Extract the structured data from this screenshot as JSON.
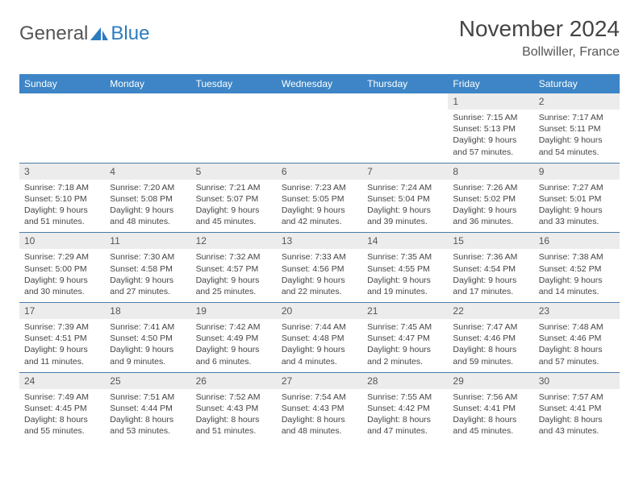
{
  "brand": {
    "name1": "General",
    "name2": "Blue"
  },
  "title": "November 2024",
  "location": "Bollwiller, France",
  "colors": {
    "header_bg": "#3d85c6",
    "header_text": "#ffffff",
    "daynum_bg": "#ececec",
    "row_border": "#4a7aa8",
    "body_text": "#444444",
    "title_text": "#444444",
    "brand_grey": "#555555",
    "brand_blue": "#2b7bbf",
    "page_bg": "#ffffff"
  },
  "typography": {
    "title_fontsize": 28,
    "location_fontsize": 16,
    "dayhead_fontsize": 12,
    "cell_fontsize": 10.5
  },
  "layout": {
    "columns": 7,
    "rows": 5
  },
  "day_names": [
    "Sunday",
    "Monday",
    "Tuesday",
    "Wednesday",
    "Thursday",
    "Friday",
    "Saturday"
  ],
  "weeks": [
    [
      null,
      null,
      null,
      null,
      null,
      {
        "n": "1",
        "sunrise": "7:15 AM",
        "sunset": "5:13 PM",
        "daylight": "9 hours and 57 minutes."
      },
      {
        "n": "2",
        "sunrise": "7:17 AM",
        "sunset": "5:11 PM",
        "daylight": "9 hours and 54 minutes."
      }
    ],
    [
      {
        "n": "3",
        "sunrise": "7:18 AM",
        "sunset": "5:10 PM",
        "daylight": "9 hours and 51 minutes."
      },
      {
        "n": "4",
        "sunrise": "7:20 AM",
        "sunset": "5:08 PM",
        "daylight": "9 hours and 48 minutes."
      },
      {
        "n": "5",
        "sunrise": "7:21 AM",
        "sunset": "5:07 PM",
        "daylight": "9 hours and 45 minutes."
      },
      {
        "n": "6",
        "sunrise": "7:23 AM",
        "sunset": "5:05 PM",
        "daylight": "9 hours and 42 minutes."
      },
      {
        "n": "7",
        "sunrise": "7:24 AM",
        "sunset": "5:04 PM",
        "daylight": "9 hours and 39 minutes."
      },
      {
        "n": "8",
        "sunrise": "7:26 AM",
        "sunset": "5:02 PM",
        "daylight": "9 hours and 36 minutes."
      },
      {
        "n": "9",
        "sunrise": "7:27 AM",
        "sunset": "5:01 PM",
        "daylight": "9 hours and 33 minutes."
      }
    ],
    [
      {
        "n": "10",
        "sunrise": "7:29 AM",
        "sunset": "5:00 PM",
        "daylight": "9 hours and 30 minutes."
      },
      {
        "n": "11",
        "sunrise": "7:30 AM",
        "sunset": "4:58 PM",
        "daylight": "9 hours and 27 minutes."
      },
      {
        "n": "12",
        "sunrise": "7:32 AM",
        "sunset": "4:57 PM",
        "daylight": "9 hours and 25 minutes."
      },
      {
        "n": "13",
        "sunrise": "7:33 AM",
        "sunset": "4:56 PM",
        "daylight": "9 hours and 22 minutes."
      },
      {
        "n": "14",
        "sunrise": "7:35 AM",
        "sunset": "4:55 PM",
        "daylight": "9 hours and 19 minutes."
      },
      {
        "n": "15",
        "sunrise": "7:36 AM",
        "sunset": "4:54 PM",
        "daylight": "9 hours and 17 minutes."
      },
      {
        "n": "16",
        "sunrise": "7:38 AM",
        "sunset": "4:52 PM",
        "daylight": "9 hours and 14 minutes."
      }
    ],
    [
      {
        "n": "17",
        "sunrise": "7:39 AM",
        "sunset": "4:51 PM",
        "daylight": "9 hours and 11 minutes."
      },
      {
        "n": "18",
        "sunrise": "7:41 AM",
        "sunset": "4:50 PM",
        "daylight": "9 hours and 9 minutes."
      },
      {
        "n": "19",
        "sunrise": "7:42 AM",
        "sunset": "4:49 PM",
        "daylight": "9 hours and 6 minutes."
      },
      {
        "n": "20",
        "sunrise": "7:44 AM",
        "sunset": "4:48 PM",
        "daylight": "9 hours and 4 minutes."
      },
      {
        "n": "21",
        "sunrise": "7:45 AM",
        "sunset": "4:47 PM",
        "daylight": "9 hours and 2 minutes."
      },
      {
        "n": "22",
        "sunrise": "7:47 AM",
        "sunset": "4:46 PM",
        "daylight": "8 hours and 59 minutes."
      },
      {
        "n": "23",
        "sunrise": "7:48 AM",
        "sunset": "4:46 PM",
        "daylight": "8 hours and 57 minutes."
      }
    ],
    [
      {
        "n": "24",
        "sunrise": "7:49 AM",
        "sunset": "4:45 PM",
        "daylight": "8 hours and 55 minutes."
      },
      {
        "n": "25",
        "sunrise": "7:51 AM",
        "sunset": "4:44 PM",
        "daylight": "8 hours and 53 minutes."
      },
      {
        "n": "26",
        "sunrise": "7:52 AM",
        "sunset": "4:43 PM",
        "daylight": "8 hours and 51 minutes."
      },
      {
        "n": "27",
        "sunrise": "7:54 AM",
        "sunset": "4:43 PM",
        "daylight": "8 hours and 48 minutes."
      },
      {
        "n": "28",
        "sunrise": "7:55 AM",
        "sunset": "4:42 PM",
        "daylight": "8 hours and 47 minutes."
      },
      {
        "n": "29",
        "sunrise": "7:56 AM",
        "sunset": "4:41 PM",
        "daylight": "8 hours and 45 minutes."
      },
      {
        "n": "30",
        "sunrise": "7:57 AM",
        "sunset": "4:41 PM",
        "daylight": "8 hours and 43 minutes."
      }
    ]
  ],
  "labels": {
    "sunrise": "Sunrise: ",
    "sunset": "Sunset: ",
    "daylight": "Daylight: "
  }
}
